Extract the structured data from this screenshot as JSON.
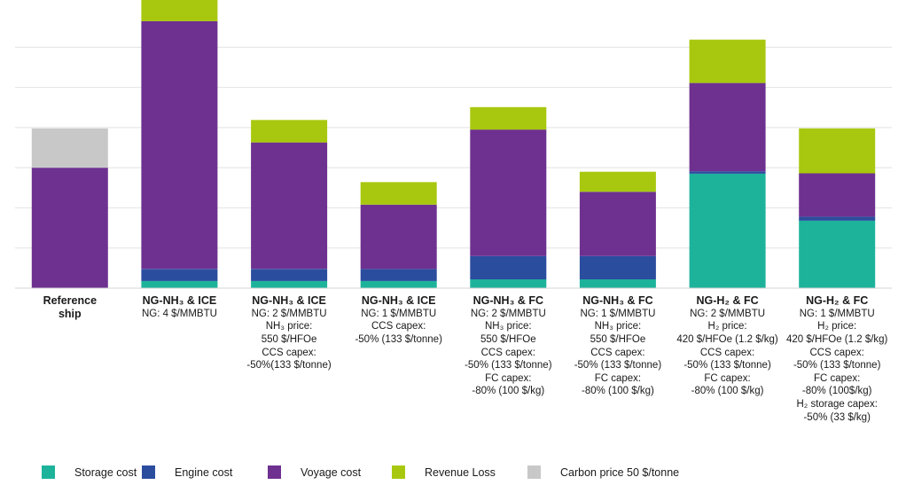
{
  "chart_data": {
    "type": "bar",
    "stacked": true,
    "title": "",
    "xlabel": "",
    "ylabel": "",
    "ylim": [
      0,
      7
    ],
    "grid": true,
    "legend": "bottom",
    "categories": [
      {
        "title": "Reference ship",
        "notes": []
      },
      {
        "title": "NG-NH₃ & ICE",
        "notes": [
          "NG: 4 $/MMBTU"
        ]
      },
      {
        "title": "NG-NH₃ & ICE",
        "notes": [
          "NG: 2 $/MMBTU",
          "NH₃ price:",
          "550 $/HFOe",
          "CCS capex:",
          "-50%(133 $/tonne)"
        ]
      },
      {
        "title": "NG-NH₃ & ICE",
        "notes": [
          "NG: 1 $/MMBTU",
          "CCS capex:",
          "-50% (133 $/tonne)"
        ]
      },
      {
        "title": "NG-NH₃ & FC",
        "notes": [
          "NG: 2 $/MMBTU",
          "NH₃ price:",
          "550 $/HFOe",
          "CCS capex:",
          "-50% (133 $/tonne)",
          "FC capex:",
          "-80% (100 $/kg)"
        ]
      },
      {
        "title": "NG-NH₃ & FC",
        "notes": [
          "NG: 1 $/MMBTU",
          "NH₃ price:",
          "550 $/HFOe",
          "CCS capex:",
          "-50% (133 $/tonne)",
          "FC capex:",
          "-80% (100 $/kg)"
        ]
      },
      {
        "title": "NG-H₂ & FC",
        "notes": [
          "NG: 2 $/MMBTU",
          "H₂ price:",
          "420 $/HFOe (1.2 $/kg)",
          "CCS capex:",
          "-50% (133 $/tonne)",
          "FC capex:",
          "-80% (100 $/kg)"
        ]
      },
      {
        "title": "NG-H₂ & FC",
        "notes": [
          "NG: 1 $/MMBTU",
          "H₂ price:",
          "420 $/HFOe (1.2 $/kg)",
          "CCS capex:",
          "-50% (133 $/tonne)",
          "FC capex:",
          "-80% (100$/kg)",
          "H₂ storage capex:",
          "-50% (33 $/kg)"
        ]
      }
    ],
    "series": [
      {
        "name": "Storage cost",
        "color": "#1db39b",
        "values": [
          0,
          0.18,
          0.18,
          0.18,
          0.22,
          0.22,
          2.85,
          1.68
        ]
      },
      {
        "name": "Engine cost",
        "color": "#2b4d9e",
        "values": [
          0,
          0.3,
          0.3,
          0.3,
          0.58,
          0.58,
          0.06,
          0.1
        ]
      },
      {
        "name": "Voyage cost",
        "color": "#6e3190",
        "values": [
          3.0,
          6.17,
          3.15,
          1.6,
          3.15,
          1.6,
          2.2,
          1.08
        ]
      },
      {
        "name": "Revenue Loss",
        "color": "#a8c80f",
        "values": [
          0,
          0.6,
          0.56,
          0.56,
          0.56,
          0.5,
          1.08,
          1.12
        ]
      },
      {
        "name": "Carbon price 50 $/tonne",
        "color": "#c8c8c8",
        "values": [
          0.98,
          0,
          0,
          0,
          0,
          0,
          0,
          0
        ]
      }
    ]
  }
}
